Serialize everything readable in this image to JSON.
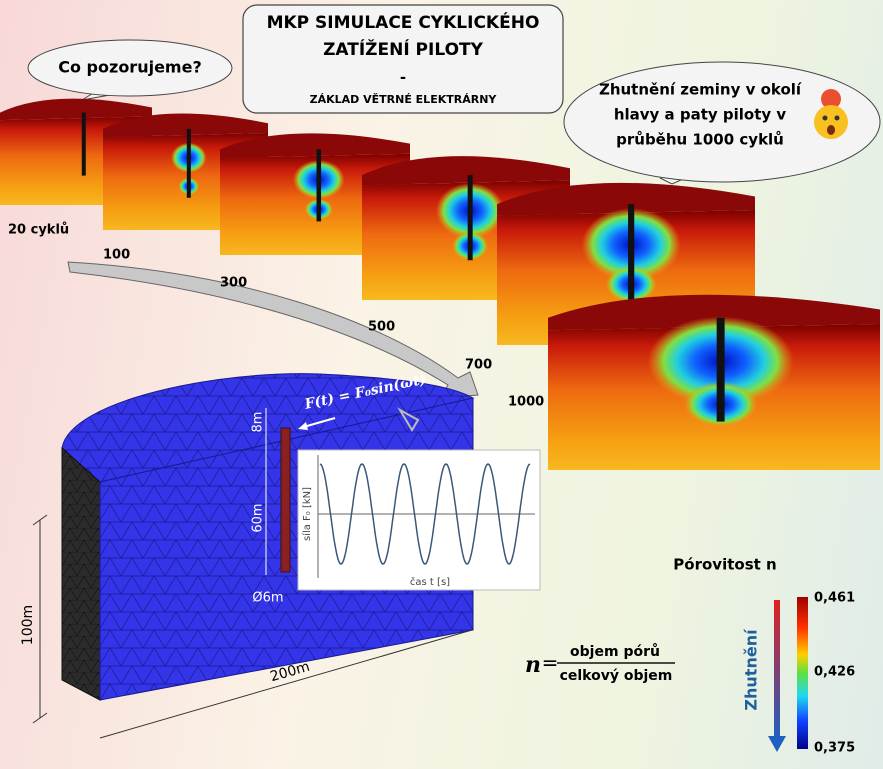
{
  "title": {
    "lines": [
      "MKP SIMULACE CYKLICKÉHO",
      "ZATÍŽENÍ PILOTY",
      "-"
    ],
    "subtitle": "ZÁKLAD VĚTRNÉ ELEKTRÁRNY"
  },
  "bubbles": [
    {
      "lines": [
        "Co pozorujeme?"
      ]
    },
    {
      "lines": [
        "Zhutnění zeminy v okolí",
        "hlavy a paty piloty v",
        "průběhu 1000 cyklů"
      ]
    }
  ],
  "stages": [
    "20 cyklů",
    "100",
    "300",
    "500",
    "700",
    "1000"
  ],
  "model": {
    "force": "F(t) = F₀sin(ωt)",
    "head_depth": "8m",
    "pile_length": "60m",
    "pile_diameter": "Ø6m",
    "height": "100m",
    "diameter": "200m"
  },
  "plot": {
    "y_label": "síla F₀ [kN]",
    "x_label": "čas t [s]"
  },
  "porosity": {
    "label": "Pórovitost n",
    "symbol": "n",
    "equals": "=",
    "numerator": "objem pórů",
    "denominator": "celkový objem"
  },
  "colorbar": {
    "arrow_label": "Zhutnění",
    "max": "0,461",
    "mid": "0,426",
    "min": "0,375"
  }
}
